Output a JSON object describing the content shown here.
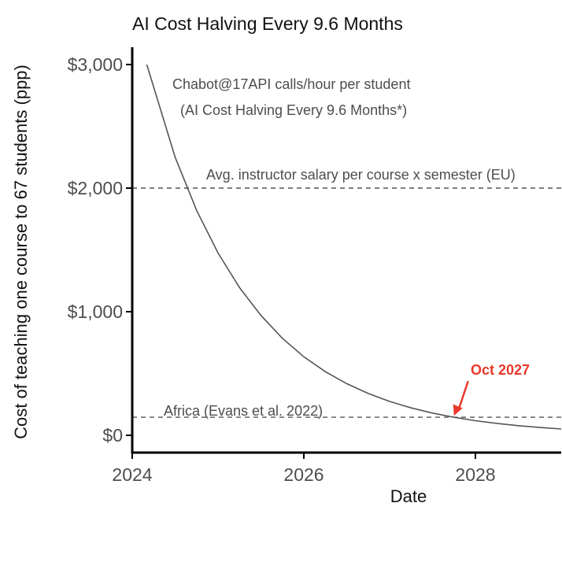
{
  "chart_data": {
    "type": "line",
    "title": "AI Cost Halving Every 9.6 Months",
    "xlabel": "Date",
    "ylabel": "Cost of teaching one course to 67 students (ppp)",
    "xlim": [
      2024.0,
      2029.0
    ],
    "ylim": [
      -140,
      3140
    ],
    "x_ticks": [
      2024,
      2026,
      2028
    ],
    "x_tick_labels": [
      "2024",
      "2026",
      "2028"
    ],
    "y_ticks": [
      0,
      1000,
      2000,
      3000
    ],
    "y_tick_labels": [
      "$0",
      "$1,000",
      "$2,000",
      "$3,000"
    ],
    "grid": false,
    "curve": {
      "label_line1": "Chabot@17API calls/hour per student",
      "label_line2": "(AI Cost Halving Every 9.6 Months*)",
      "x": [
        2024.17,
        2024.5,
        2024.75,
        2025.0,
        2025.25,
        2025.5,
        2025.75,
        2026.0,
        2026.25,
        2026.5,
        2026.75,
        2027.0,
        2027.25,
        2027.5,
        2027.75,
        2028.0,
        2028.25,
        2028.5,
        2028.75,
        2029.0
      ],
      "y": [
        3000,
        2250,
        1820,
        1475,
        1195,
        970,
        785,
        635,
        515,
        418,
        338,
        274,
        222,
        180,
        146,
        118,
        96,
        78,
        63,
        51
      ]
    },
    "reference_lines": [
      {
        "label": "Avg. instructor salary per course x semester (EU)",
        "value": 2000
      },
      {
        "label": "Africa (Evans et al. 2022)",
        "value": 146
      }
    ],
    "annotation": {
      "text": "Oct 2027",
      "x": 2027.75,
      "y": 146
    },
    "colors": {
      "curve": "#555555",
      "reference": "#555555",
      "annotation": "#e8392c",
      "axis": "#000000"
    }
  }
}
